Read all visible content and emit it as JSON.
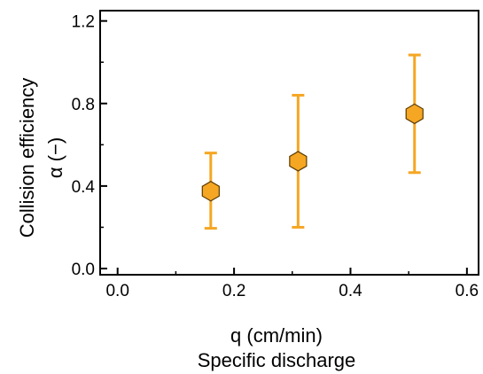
{
  "chart_data": {
    "type": "scatter",
    "title": "",
    "xlabel": "q (cm/min)",
    "xlabel_line2": "Specific discharge",
    "ylabel": "Collision efficiency",
    "ylabel_line2": "α (−)",
    "xlim": [
      -0.03,
      0.62
    ],
    "ylim": [
      -0.03,
      1.25
    ],
    "x_ticks": [
      0.0,
      0.2,
      0.4,
      0.6
    ],
    "x_tick_labels": [
      "0.0",
      "0.2",
      "0.4",
      "0.6"
    ],
    "y_ticks": [
      0.0,
      0.4,
      0.8,
      1.2
    ],
    "y_tick_labels": [
      "0.0",
      "0.4",
      "0.8",
      "1.2"
    ],
    "grid": false,
    "marker": "hexagon",
    "series": [
      {
        "x": [
          0.16,
          0.31,
          0.51
        ],
        "y": [
          0.375,
          0.52,
          0.75
        ],
        "y_err_low": [
          0.195,
          0.2,
          0.465
        ],
        "y_err_high": [
          0.56,
          0.84,
          1.035
        ]
      }
    ],
    "colors": {
      "marker_fill": "#F5A623",
      "marker_edge": "#5a3a00",
      "error_bar": "#F5A623",
      "axis": "#000000"
    }
  }
}
